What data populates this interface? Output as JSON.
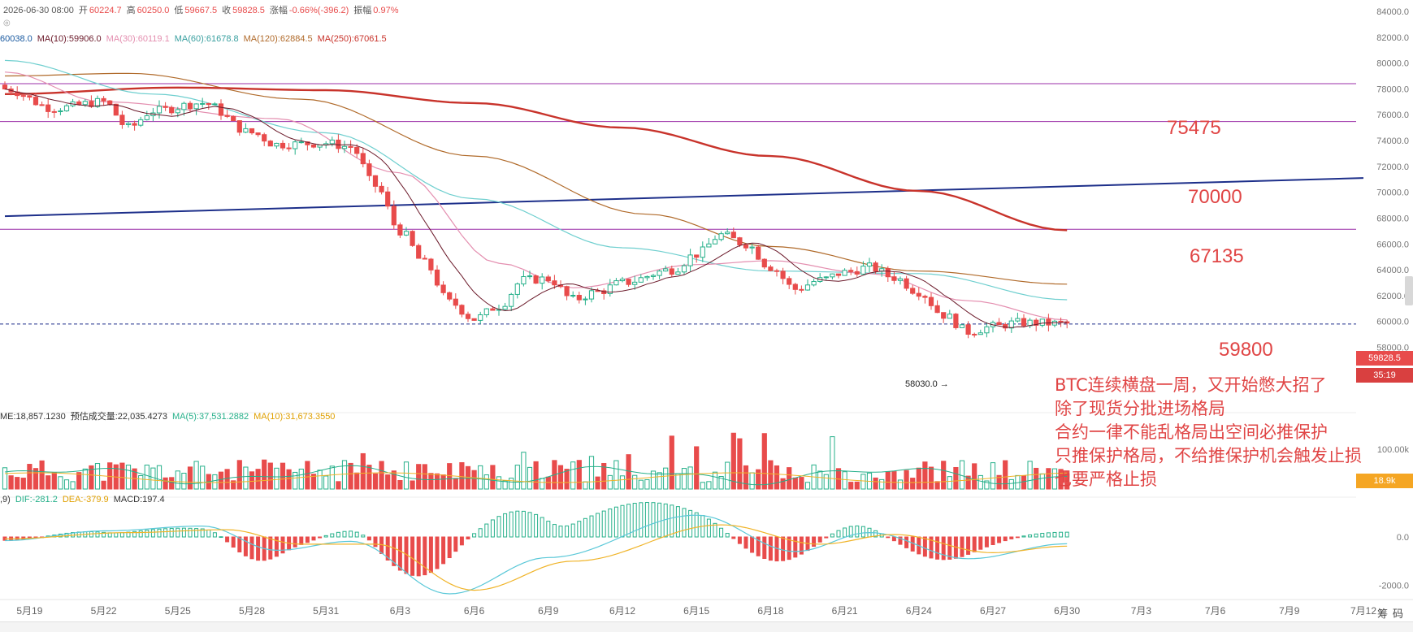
{
  "ohlc_bar": {
    "datetime": "2026-06-30 08:00",
    "open_label": "开",
    "open": "60224.7",
    "high_label": "高",
    "high": "60250.0",
    "low_label": "低",
    "low": "59667.5",
    "close_label": "收",
    "close": "59828.5",
    "change_label": "涨幅",
    "change": "-0.66%(-396.2)",
    "amplitude_label": "振幅",
    "amplitude": "0.97%"
  },
  "ma_bar": {
    "ma5": "60038.0",
    "ma10": "MA(10):59906.0",
    "ma30": "MA(30):60119.1",
    "ma60": "MA(60):61678.8",
    "ma120": "MA(120):62884.5",
    "ma250": "MA(250):67061.5"
  },
  "volume_bar": {
    "vol": "ME:18,857.1230",
    "forecast": "预估成交量:22,035.4273",
    "ma5": "MA(5):37,531.2882",
    "ma10": "MA(10):31,673.3550"
  },
  "macd_bar": {
    "params": ",9)",
    "dif": "DIF:-281.2",
    "dea": "DEA:-379.9",
    "macd": "MACD:197.4"
  },
  "levels": {
    "l1": "75475",
    "l2": "70000",
    "l3": "67135",
    "l4": "59800"
  },
  "price_tag": "59828.5",
  "countdown_tag": "35:19",
  "low_marker": "58030.0",
  "volume_tag": "18.9k",
  "annotation": [
    "BTC连续横盘一周，又开始憋大招了",
    "除了现货分批进场格局",
    "合约一律不能乱格局出空间必推保护",
    "只推保护格局，不给推保护机会触发止损",
    "也要严格止损"
  ],
  "side_labels": {
    "top": "筹",
    "bottom": "码"
  },
  "colors": {
    "up": "#26b08a",
    "down": "#e84b4b",
    "ma10": "#6b1a2a",
    "ma30": "#e48fb0",
    "ma60": "#6fcfcf",
    "ma120": "#b06a2a",
    "ma250": "#c8332b",
    "trendline": "#1d2f8a",
    "level": "#9b2fa8",
    "dif": "#5ac8d8",
    "dea": "#f0b429"
  },
  "chart_data": [
    {
      "type": "candlestick",
      "title": "",
      "x": [
        "5月19",
        "5月22",
        "5月25",
        "5月28",
        "5月31",
        "6月3",
        "6月6",
        "6月9",
        "6月12",
        "6月15",
        "6月18",
        "6月21",
        "6月24",
        "6月27",
        "6月30",
        "7月3",
        "7月6",
        "7月9",
        "7月12"
      ],
      "yaxis": [
        "84000.0",
        "82000.0",
        "80000.0",
        "78000.0",
        "76000.0",
        "74000.0",
        "72000.0",
        "70000.0",
        "68000.0",
        "66000.0",
        "64000.0",
        "62000.0",
        "60000.0",
        "58000.0"
      ],
      "ylim": [
        57000,
        84500
      ],
      "horizontal_levels": [
        78400,
        75475,
        67135,
        59800
      ],
      "trendline": {
        "from": {
          "date": "5月18",
          "value": 68150
        },
        "to": {
          "date": "7月12",
          "value": 71100
        }
      },
      "close_anchors": [
        {
          "date": "5月18",
          "value": 78000
        },
        {
          "date": "5月20",
          "value": 76500
        },
        {
          "date": "5月22",
          "value": 77000
        },
        {
          "date": "5月23",
          "value": 75000
        },
        {
          "date": "5月24",
          "value": 76300
        },
        {
          "date": "5月26",
          "value": 76900
        },
        {
          "date": "5月28",
          "value": 74600
        },
        {
          "date": "5月29",
          "value": 73700
        },
        {
          "date": "5月31",
          "value": 73800
        },
        {
          "date": "6月1",
          "value": 73500
        },
        {
          "date": "6月2",
          "value": 70500
        },
        {
          "date": "6月3",
          "value": 67000
        },
        {
          "date": "6月4",
          "value": 64500
        },
        {
          "date": "6月5",
          "value": 61500
        },
        {
          "date": "6月6",
          "value": 60200
        },
        {
          "date": "6月7",
          "value": 61200
        },
        {
          "date": "6月8",
          "value": 63200
        },
        {
          "date": "6月9",
          "value": 63300
        },
        {
          "date": "6月10",
          "value": 61700
        },
        {
          "date": "6月11",
          "value": 62300
        },
        {
          "date": "6月12",
          "value": 63000
        },
        {
          "date": "6月14",
          "value": 64000
        },
        {
          "date": "6月15",
          "value": 65200
        },
        {
          "date": "6月16",
          "value": 66700
        },
        {
          "date": "6月17",
          "value": 66000
        },
        {
          "date": "6月18",
          "value": 64200
        },
        {
          "date": "6月19",
          "value": 62500
        },
        {
          "date": "6月20",
          "value": 63200
        },
        {
          "date": "6月21",
          "value": 63800
        },
        {
          "date": "6月22",
          "value": 64200
        },
        {
          "date": "6月23",
          "value": 63400
        },
        {
          "date": "6月24",
          "value": 62300
        },
        {
          "date": "6月25",
          "value": 60500
        },
        {
          "date": "6月26",
          "value": 59200
        },
        {
          "date": "6月27",
          "value": 59600
        },
        {
          "date": "6月28",
          "value": 59900
        },
        {
          "date": "6月30",
          "value": 59828.5
        }
      ],
      "moving_averages": [
        {
          "name": "MA(120)",
          "points": [
            {
              "date": "5月18",
              "value": 79000
            },
            {
              "date": "5月23",
              "value": 79200
            },
            {
              "date": "5月30",
              "value": 77200
            },
            {
              "date": "6月6",
              "value": 72800
            },
            {
              "date": "6月13",
              "value": 68300
            },
            {
              "date": "6月18",
              "value": 65800
            },
            {
              "date": "6月24",
              "value": 63900
            },
            {
              "date": "6月30",
              "value": 62884.5
            }
          ]
        },
        {
          "name": "MA(250)",
          "points": [
            {
              "date": "5月18",
              "value": 77600
            },
            {
              "date": "5月25",
              "value": 78100
            },
            {
              "date": "5月31",
              "value": 77900
            },
            {
              "date": "6月6",
              "value": 76900
            },
            {
              "date": "6月12",
              "value": 75000
            },
            {
              "date": "6月18",
              "value": 72800
            },
            {
              "date": "6月24",
              "value": 70100
            },
            {
              "date": "6月30",
              "value": 67061.5
            }
          ]
        },
        {
          "name": "MA(60)",
          "points": [
            {
              "date": "5月18",
              "value": 80200
            },
            {
              "date": "5月24",
              "value": 77600
            },
            {
              "date": "5月31",
              "value": 74600
            },
            {
              "date": "6月6",
              "value": 69500
            },
            {
              "date": "6月12",
              "value": 65700
            },
            {
              "date": "6月18",
              "value": 63900
            },
            {
              "date": "6月24",
              "value": 63700
            },
            {
              "date": "6月30",
              "value": 61678.8
            }
          ]
        },
        {
          "name": "MA(30)",
          "points": [
            {
              "date": "5月18",
              "value": 79300
            },
            {
              "date": "5月22",
              "value": 77000
            },
            {
              "date": "5月29",
              "value": 75700
            },
            {
              "date": "6月3",
              "value": 71500
            },
            {
              "date": "6月7",
              "value": 64500
            },
            {
              "date": "6月10",
              "value": 62600
            },
            {
              "date": "6月15",
              "value": 64400
            },
            {
              "date": "6月18",
              "value": 64700
            },
            {
              "date": "6月22",
              "value": 63700
            },
            {
              "date": "6月26",
              "value": 61600
            },
            {
              "date": "6月30",
              "value": 60119.1
            }
          ]
        }
      ]
    },
    {
      "type": "bar",
      "title": "Volume",
      "yaxis": [
        "100.00k"
      ],
      "note": "daily volume with MA(5) and MA(10)"
    },
    {
      "type": "bar",
      "title": "MACD",
      "yaxis": [
        "0.0",
        "-2000.0"
      ],
      "series": [
        {
          "name": "DIF",
          "points": [
            {
              "date": "5月18",
              "value": -150
            },
            {
              "date": "5月22",
              "value": 250
            },
            {
              "date": "5月26",
              "value": 450
            },
            {
              "date": "5月29",
              "value": -550
            },
            {
              "date": "6月1",
              "value": -180
            },
            {
              "date": "6月5",
              "value": -2350
            },
            {
              "date": "6月9",
              "value": -850
            },
            {
              "date": "6月15",
              "value": 900
            },
            {
              "date": "6月19",
              "value": -600
            },
            {
              "date": "6月22",
              "value": 180
            },
            {
              "date": "6月26",
              "value": -900
            },
            {
              "date": "6月30",
              "value": -281.2
            }
          ]
        },
        {
          "name": "DEA",
          "points": [
            {
              "date": "5月18",
              "value": -80
            },
            {
              "date": "5月23",
              "value": 180
            },
            {
              "date": "5月27",
              "value": 300
            },
            {
              "date": "5月30",
              "value": -300
            },
            {
              "date": "6月2",
              "value": -300
            },
            {
              "date": "6月6",
              "value": -2200
            },
            {
              "date": "6月10",
              "value": -1000
            },
            {
              "date": "6月16",
              "value": 500
            },
            {
              "date": "6月20",
              "value": -300
            },
            {
              "date": "6月23",
              "value": 100
            },
            {
              "date": "6月27",
              "value": -650
            },
            {
              "date": "6月30",
              "value": -379.9
            }
          ]
        }
      ]
    }
  ]
}
